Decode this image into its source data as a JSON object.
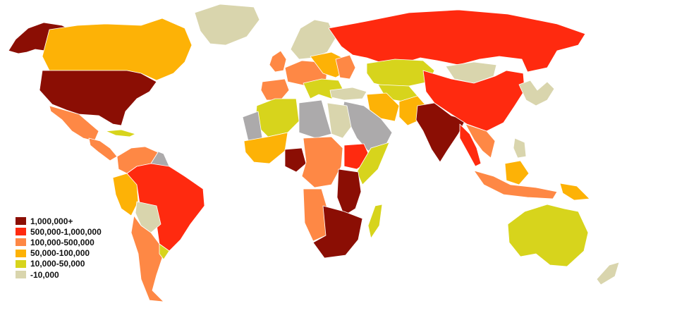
{
  "colors": {
    "cat_1m_plus": "#8b0e04",
    "cat_500k_1m": "#ff2a0f",
    "cat_100k_500k": "#fe8845",
    "cat_50k_100k": "#fdb206",
    "cat_10k_50k": "#d7d41c",
    "cat_under_10k": "#d9d5ad",
    "no_data": "#acaaab",
    "water": "#ffffff",
    "border": "#ffffff"
  },
  "legend": {
    "items": [
      {
        "label": "1,000,000+",
        "color": "#8b0e04"
      },
      {
        "label": "500,000-1,000,000",
        "color": "#ff2a0f"
      },
      {
        "label": "100,000-500,000",
        "color": "#fe8845"
      },
      {
        "label": "50,000-100,000",
        "color": "#fdb206"
      },
      {
        "label": "10,000-50,000",
        "color": "#d7d41c"
      },
      {
        "label": "-10,000",
        "color": "#d9d5ad"
      }
    ]
  }
}
